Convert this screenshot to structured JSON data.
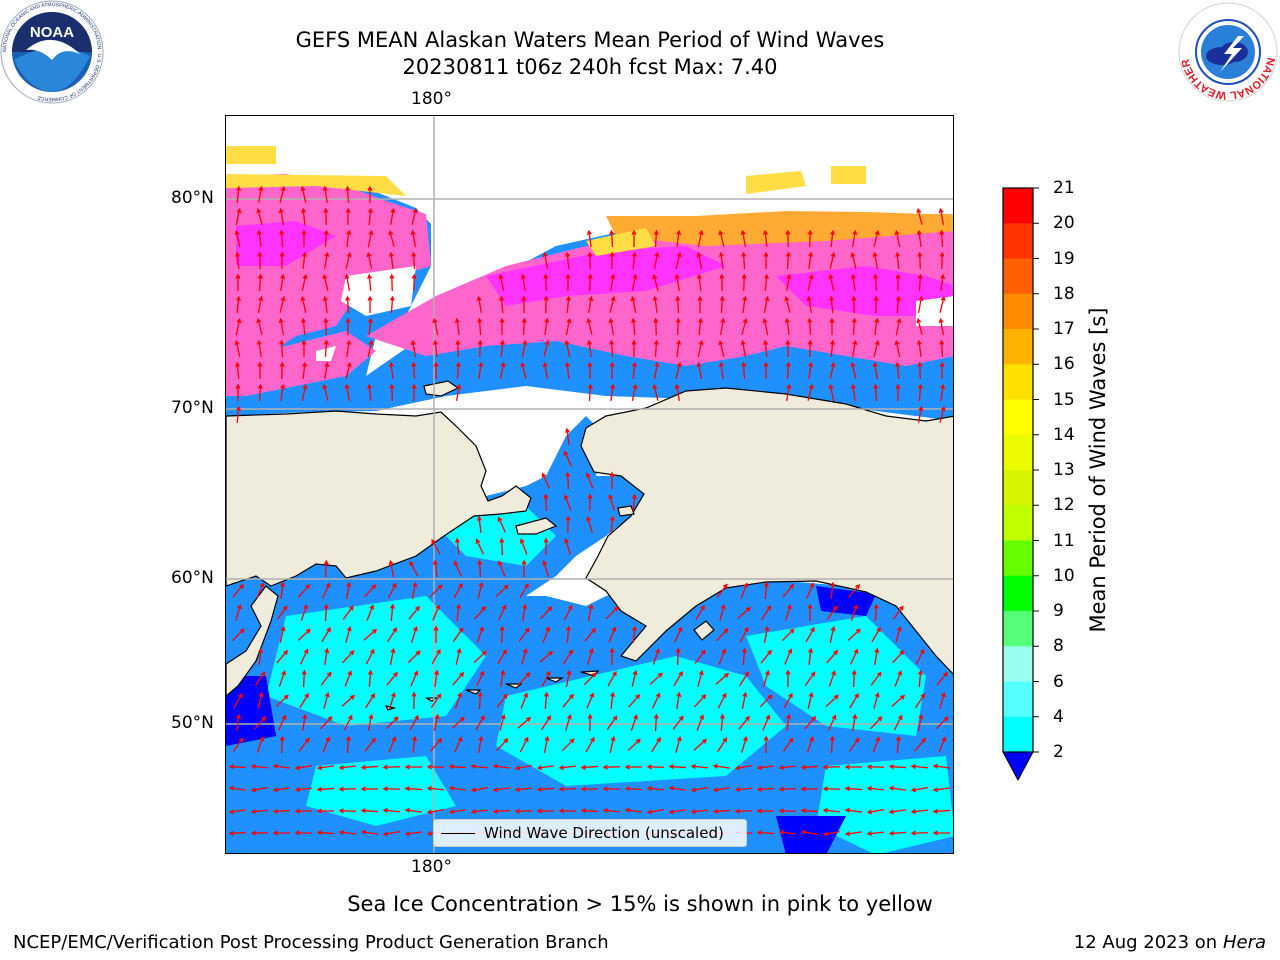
{
  "header": {
    "title_line1": "GEFS MEAN Alaskan Waters Mean Period of Wind Waves",
    "title_line2": "20230811 t06z 240h fcst   Max: 7.40"
  },
  "logos": {
    "noaa": "NOAA",
    "noaa_ring": "NATIONAL OCEANIC AND ATMOSPHERIC ADMINISTRATION · U.S. DEPARTMENT OF COMMERCE",
    "nws_ring": "NATIONAL WEATHER SERVICE"
  },
  "map": {
    "lon_label_top": "180°",
    "lon_label_bottom": "180°",
    "lat_labels": [
      "80°N",
      "70°N",
      "60°N",
      "50°N"
    ],
    "legend_label": "Wind Wave Direction (unscaled)",
    "colors": {
      "land": "#efecdc",
      "ocean_2_4": "#1e90ff",
      "ocean_4_6": "#00ffff",
      "ice_pink": "#ff66cc",
      "ice_magenta": "#ff33ff",
      "ice_orange": "#ffaa33",
      "ice_yellow": "#ffdd44",
      "arrow": "#ff0000",
      "grid": "#b0b0b0"
    }
  },
  "colorbar": {
    "label": "Mean Period of Wind Waves [s]",
    "ticks": [
      "21",
      "20",
      "19",
      "18",
      "17",
      "16",
      "15",
      "14",
      "13",
      "12",
      "11",
      "10",
      "9",
      "8",
      "6",
      "4",
      "2"
    ],
    "colors": [
      "#ff0000",
      "#ff3300",
      "#ff5f00",
      "#ff8c00",
      "#ffb300",
      "#ffe000",
      "#ffff00",
      "#ecfc00",
      "#d7f500",
      "#c0ff00",
      "#66ff00",
      "#00ff00",
      "#55ff77",
      "#99ffee",
      "#55ffff",
      "#00ffff",
      "#1e90ff"
    ],
    "under_color": "#0000ff"
  },
  "notes": {
    "ice_note": "Sea Ice Concentration > 15% is shown in pink to yellow"
  },
  "footer": {
    "left": "NCEP/EMC/Verification Post Processing Product Generation Branch",
    "date": "12 Aug 2023 on",
    "machine": "Hera"
  }
}
